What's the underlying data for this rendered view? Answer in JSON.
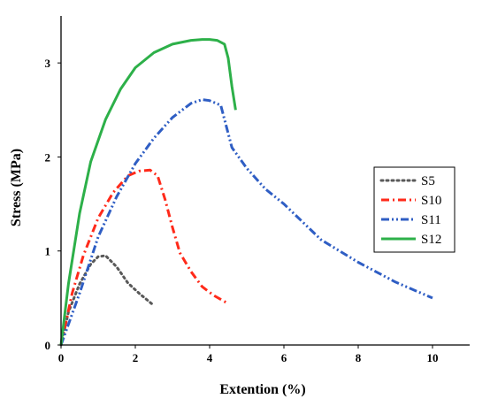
{
  "chart_data": {
    "type": "line",
    "title": "",
    "xlabel": "Extention (%)",
    "ylabel": "Stress (MPa)",
    "xlim": [
      0,
      11
    ],
    "ylim": [
      0,
      3.5
    ],
    "xticks": [
      0,
      2,
      4,
      6,
      8,
      10
    ],
    "yticks": [
      0,
      1,
      2,
      3
    ],
    "grid": false,
    "legend_position": "right",
    "series": [
      {
        "name": "S5",
        "color": "#595959",
        "style": "dotted",
        "x": [
          0,
          0.2,
          0.5,
          0.8,
          1.0,
          1.2,
          1.5,
          1.8,
          2.1,
          2.5
        ],
        "y": [
          0,
          0.35,
          0.65,
          0.86,
          0.94,
          0.95,
          0.83,
          0.66,
          0.55,
          0.42
        ]
      },
      {
        "name": "S10",
        "color": "#ff2a1a",
        "style": "dash-dot",
        "x": [
          0,
          0.3,
          0.6,
          1.0,
          1.4,
          1.8,
          2.1,
          2.4,
          2.6,
          2.8,
          3.0,
          3.2,
          3.5,
          3.8,
          4.1,
          4.5
        ],
        "y": [
          0,
          0.55,
          0.95,
          1.35,
          1.62,
          1.8,
          1.85,
          1.86,
          1.8,
          1.55,
          1.25,
          0.98,
          0.78,
          0.62,
          0.53,
          0.44
        ]
      },
      {
        "name": "S11",
        "color": "#2f5ec4",
        "style": "dash-dot-dot",
        "x": [
          0,
          0.5,
          1.0,
          1.5,
          2.0,
          2.5,
          3.0,
          3.5,
          3.8,
          4.0,
          4.3,
          4.6,
          5.0,
          5.5,
          6.0,
          7.0,
          8.0,
          9.0,
          10.0
        ],
        "y": [
          0,
          0.55,
          1.15,
          1.58,
          1.93,
          2.2,
          2.42,
          2.57,
          2.61,
          2.6,
          2.55,
          2.1,
          1.88,
          1.66,
          1.5,
          1.12,
          0.88,
          0.67,
          0.5
        ]
      },
      {
        "name": "S12",
        "color": "#2db049",
        "style": "solid",
        "x": [
          0,
          0.2,
          0.5,
          0.8,
          1.2,
          1.6,
          2.0,
          2.5,
          3.0,
          3.5,
          3.8,
          4.0,
          4.2,
          4.4,
          4.5,
          4.6,
          4.7
        ],
        "y": [
          0,
          0.65,
          1.4,
          1.95,
          2.4,
          2.72,
          2.95,
          3.11,
          3.2,
          3.24,
          3.25,
          3.25,
          3.24,
          3.2,
          3.05,
          2.75,
          2.5
        ]
      }
    ]
  }
}
